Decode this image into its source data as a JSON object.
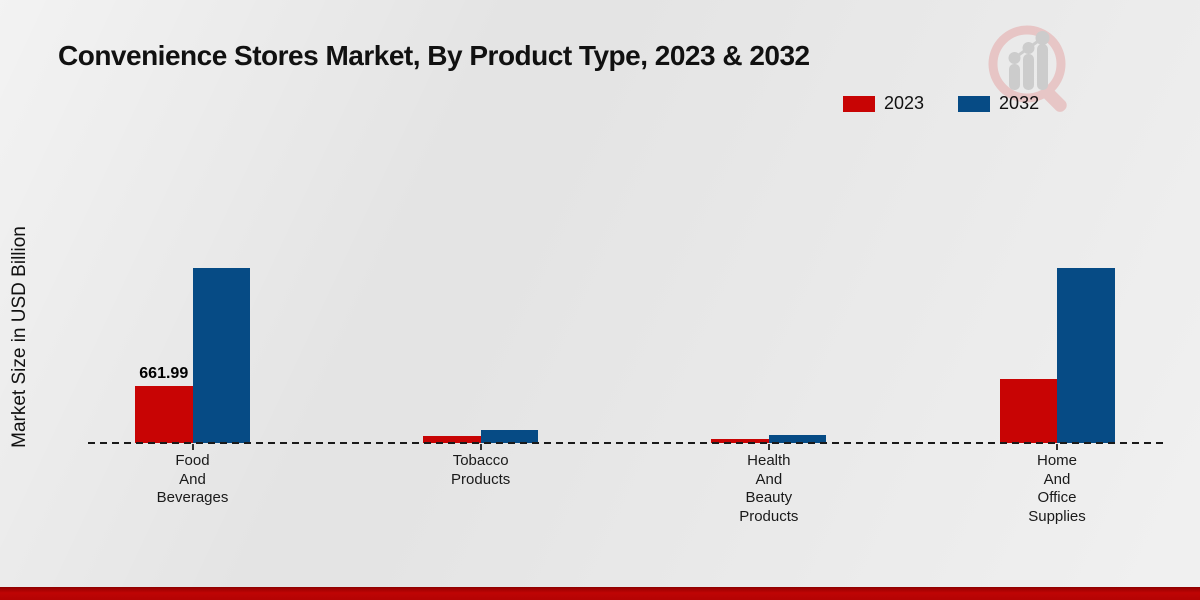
{
  "title": "Convenience Stores Market, By Product Type, 2023 & 2032",
  "y_axis_label": "Market Size in USD Billion",
  "legend": [
    {
      "label": "2023",
      "color": "#c80404"
    },
    {
      "label": "2032",
      "color": "#064b85"
    }
  ],
  "colors": {
    "series_2023": "#c80404",
    "series_2032": "#064b85",
    "background": "#e9e9e9",
    "bottom_strip": "#b30303",
    "text": "#111111"
  },
  "watermark": "magnifier-bar-chart-logo-icon",
  "chart_data": {
    "type": "bar",
    "title": "Convenience Stores Market, By Product Type, 2023 & 2032",
    "xlabel": "",
    "ylabel": "Market Size in USD Billion",
    "categories": [
      "Food And Beverages",
      "Tobacco Products",
      "Health And Beauty Products",
      "Home And Office Supplies"
    ],
    "category_lines": [
      [
        "Food",
        "And",
        "Beverages"
      ],
      [
        "Tobacco",
        "Products"
      ],
      [
        "Health",
        "And",
        "Beauty",
        "Products"
      ],
      [
        "Home",
        "And",
        "Office",
        "Supplies"
      ]
    ],
    "series": [
      {
        "name": "2023",
        "color": "#c80404",
        "values": [
          661.99,
          77,
          43,
          737
        ],
        "data_labels": [
          "661.99",
          "",
          "",
          ""
        ]
      },
      {
        "name": "2032",
        "color": "#064b85",
        "values": [
          2010,
          153,
          96,
          2010
        ],
        "data_labels": [
          "",
          "",
          "",
          ""
        ]
      }
    ],
    "ylim": [
      0,
      2100
    ],
    "grid": false,
    "legend_position": "top-right",
    "baseline_style": "dashed",
    "value_note": "only Food And Beverages 2023 bar is labeled (661.99); other values estimated from bar heights"
  }
}
